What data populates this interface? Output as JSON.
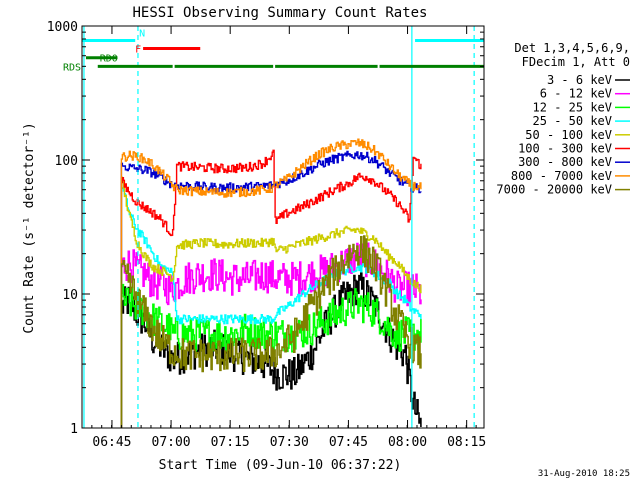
{
  "chart_data": {
    "type": "line",
    "title": "HESSI Observing Summary Count Rates",
    "xlabel": "Start Time (09-Jun-10 06:37:22)",
    "ylabel": "Count Rate (s⁻¹ detector⁻¹)",
    "ylog": true,
    "ylim": [
      1,
      1000
    ],
    "xlim_minutes": [
      0,
      102
    ],
    "x_ticks": [
      {
        "m": 7.6,
        "label": "06:45"
      },
      {
        "m": 22.6,
        "label": "07:00"
      },
      {
        "m": 37.6,
        "label": "07:15"
      },
      {
        "m": 52.6,
        "label": "07:30"
      },
      {
        "m": 67.6,
        "label": "07:45"
      },
      {
        "m": 82.6,
        "label": "08:00"
      },
      {
        "m": 97.6,
        "label": "08:15"
      }
    ],
    "y_ticks": [
      {
        "v": 1,
        "label": "1"
      },
      {
        "v": 10,
        "label": "10"
      },
      {
        "v": 100,
        "label": "100"
      },
      {
        "v": 1000,
        "label": "1000"
      }
    ],
    "legend_header": [
      "Det 1,3,4,5,6,9,",
      "FDecim 1, Att 0"
    ],
    "legend_position": "right",
    "footer_date": "31-Aug-2010 18:25",
    "flags": [
      {
        "label": "N",
        "color": "#00ffff",
        "segments": [
          [
            0,
            13.5
          ],
          [
            84.5,
            102
          ]
        ],
        "level": 780
      },
      {
        "label": "F",
        "color": "#ff0000",
        "segments": [
          [
            15.5,
            30
          ]
        ],
        "level": 680
      },
      {
        "label": "RD0",
        "color": "#008000",
        "segments": [
          [
            1,
            9
          ]
        ],
        "level": 580
      },
      {
        "label": "RDS",
        "color": "#008000",
        "segments": [
          [
            4,
            23
          ],
          [
            23.5,
            48.5
          ],
          [
            49,
            75
          ],
          [
            75.5,
            102
          ]
        ],
        "level": 500
      }
    ],
    "saa_lines": [
      {
        "m": 0.5,
        "style": "solid"
      },
      {
        "m": 14.2,
        "style": "dashed"
      },
      {
        "m": 83.7,
        "style": "solid"
      },
      {
        "m": 99.5,
        "style": "dashed"
      }
    ],
    "series": [
      {
        "name": "3 - 6 keV",
        "color": "#000000",
        "x": [
          10,
          12,
          14,
          16,
          18,
          20,
          22,
          23,
          26,
          30,
          34,
          38,
          42,
          46,
          50,
          54,
          58,
          62,
          66,
          68,
          70,
          72,
          74,
          76,
          78,
          80,
          82,
          84,
          86
        ],
        "y": [
          8,
          9,
          7,
          6,
          4.5,
          4,
          3.5,
          3.2,
          3.5,
          3.8,
          4,
          3.6,
          3.3,
          3,
          2.5,
          2.5,
          3.5,
          6,
          9,
          10,
          11.5,
          10,
          8.5,
          6.5,
          5,
          4,
          3.5,
          1.5,
          1
        ]
      },
      {
        "name": "6 - 12 keV",
        "color": "#ff00ff",
        "x": [
          10,
          12,
          14,
          16,
          18,
          20,
          22,
          23,
          26,
          30,
          34,
          38,
          42,
          46,
          50,
          54,
          58,
          62,
          66,
          68,
          70,
          72,
          74,
          76,
          78,
          80,
          82,
          84,
          86
        ],
        "y": [
          16,
          17,
          15,
          14,
          12,
          12,
          11,
          11,
          13,
          14,
          14,
          13,
          13,
          14,
          13,
          13,
          14,
          15,
          17,
          18,
          19,
          18,
          17,
          15,
          13,
          11,
          11,
          11,
          10
        ]
      },
      {
        "name": "12 - 25 keV",
        "color": "#00ff00",
        "x": [
          10,
          12,
          14,
          16,
          18,
          20,
          22,
          23,
          26,
          30,
          34,
          38,
          42,
          46,
          50,
          54,
          58,
          62,
          66,
          68,
          70,
          72,
          74,
          76,
          78,
          80,
          82,
          84,
          86
        ],
        "y": [
          9,
          8.5,
          8,
          7.5,
          6.5,
          6,
          5.5,
          5,
          5,
          5,
          5,
          5,
          5.5,
          5,
          5,
          5,
          5.5,
          6.5,
          7.5,
          8,
          8.5,
          8,
          7.5,
          6.5,
          5.5,
          5,
          5,
          5,
          5
        ]
      },
      {
        "name": "25 - 50 keV",
        "color": "#00ffff",
        "x": [
          10,
          12,
          14,
          16,
          18,
          20,
          22,
          23,
          24,
          30,
          36,
          42,
          46,
          48.5,
          49,
          52,
          56,
          60,
          64,
          68,
          70,
          72,
          74,
          76,
          78,
          80,
          82,
          83,
          84,
          86
        ],
        "y": [
          65,
          40,
          30,
          25,
          20,
          16,
          15,
          14,
          6.5,
          6.5,
          6.5,
          6.5,
          6.5,
          6.5,
          7,
          8,
          10,
          12,
          14,
          15.5,
          16,
          15.5,
          14.5,
          13,
          12,
          10,
          9,
          8,
          7.5,
          7
        ]
      },
      {
        "name": "50 - 100 keV",
        "color": "#cccc00",
        "x": [
          10,
          12,
          14,
          16,
          18,
          20,
          22,
          23,
          24,
          30,
          36,
          42,
          46,
          48.5,
          49,
          52,
          56,
          60,
          64,
          68,
          70,
          72,
          74,
          76,
          78,
          80,
          82,
          83,
          84,
          86
        ],
        "y": [
          70,
          38,
          24,
          19,
          16,
          15,
          14,
          13,
          23,
          24,
          23.5,
          24,
          24,
          25,
          21,
          22,
          24,
          26,
          28,
          30,
          30,
          28,
          26,
          22,
          19,
          17,
          14,
          13,
          12,
          11
        ]
      },
      {
        "name": "100 - 300 keV",
        "color": "#ff0000",
        "x": [
          10,
          12,
          14,
          16,
          18,
          20,
          22,
          23,
          24,
          30,
          36,
          42,
          46,
          48.5,
          49,
          52,
          56,
          60,
          64,
          68,
          70,
          72,
          74,
          76,
          78,
          80,
          82,
          83,
          84,
          86
        ],
        "y": [
          70,
          57,
          48,
          44,
          40,
          36,
          30,
          28,
          90,
          88,
          86,
          88,
          95,
          112,
          35,
          40,
          45,
          52,
          60,
          68,
          75,
          75,
          70,
          62,
          55,
          48,
          40,
          35,
          105,
          90
        ]
      },
      {
        "name": "300 - 800 keV",
        "color": "#0000cc",
        "x": [
          10,
          12,
          14,
          16,
          18,
          20,
          22,
          23,
          24,
          30,
          36,
          42,
          46,
          48.5,
          49,
          52,
          56,
          60,
          64,
          68,
          70,
          72,
          74,
          76,
          78,
          80,
          82,
          83,
          84,
          86
        ],
        "y": [
          90,
          88,
          86,
          84,
          80,
          74,
          68,
          65,
          65,
          63,
          62,
          63,
          64,
          65,
          66,
          70,
          80,
          92,
          102,
          108,
          110,
          106,
          100,
          90,
          80,
          72,
          66,
          64,
          62,
          60
        ]
      },
      {
        "name": "800 - 7000 keV",
        "color": "#ff8c00",
        "x": [
          10,
          12,
          14,
          16,
          18,
          20,
          22,
          23,
          24,
          30,
          36,
          42,
          46,
          48.5,
          49,
          52,
          56,
          60,
          64,
          68,
          70,
          72,
          74,
          76,
          78,
          80,
          82,
          83,
          84,
          86
        ],
        "y": [
          105,
          108,
          106,
          100,
          92,
          80,
          70,
          64,
          60,
          58,
          57,
          58,
          60,
          62,
          65,
          72,
          90,
          110,
          125,
          132,
          134,
          128,
          118,
          105,
          90,
          78,
          70,
          66,
          64,
          62
        ]
      },
      {
        "name": "7000 - 20000 keV",
        "color": "#808000",
        "x": [
          10,
          12,
          14,
          16,
          18,
          20,
          22,
          23,
          26,
          30,
          34,
          38,
          42,
          46,
          50,
          54,
          58,
          62,
          66,
          68,
          70,
          72,
          74,
          76,
          78,
          80,
          82,
          84,
          86
        ],
        "y": [
          14,
          12,
          9,
          7,
          5.5,
          4.5,
          4,
          3.8,
          3.5,
          3.5,
          3.5,
          3.5,
          3.5,
          3.5,
          3.8,
          5,
          8,
          12,
          17,
          20,
          22,
          20,
          17,
          13,
          9,
          6.5,
          5,
          4,
          3.5
        ]
      }
    ]
  }
}
